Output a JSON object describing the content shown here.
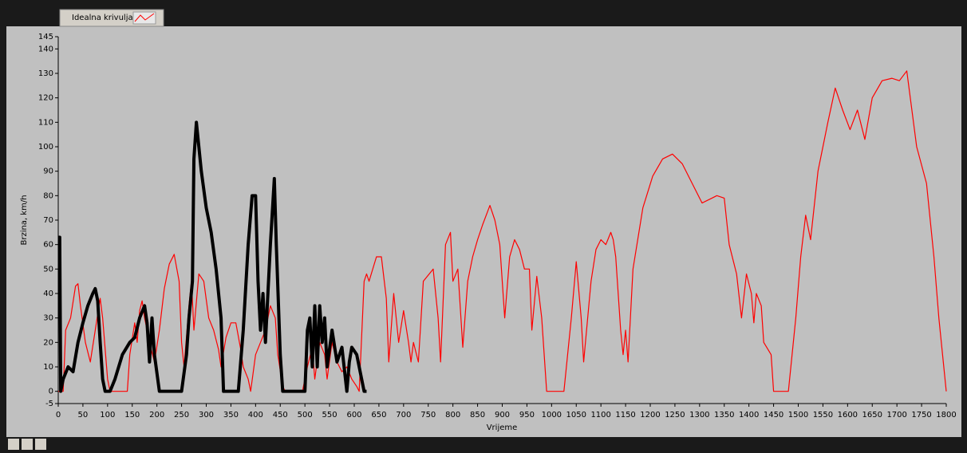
{
  "chart_data": {
    "type": "line",
    "xlabel": "Vrijeme",
    "ylabel": "Brzina, km/h",
    "xlim": [
      0,
      1800
    ],
    "ylim": [
      -5,
      145
    ],
    "xticks": [
      0,
      50,
      100,
      150,
      200,
      250,
      300,
      350,
      400,
      450,
      500,
      550,
      600,
      650,
      700,
      750,
      800,
      850,
      900,
      950,
      1000,
      1050,
      1100,
      1150,
      1200,
      1250,
      1300,
      1350,
      1400,
      1450,
      1500,
      1550,
      1600,
      1650,
      1700,
      1750,
      1800
    ],
    "yticks": [
      -5,
      0,
      10,
      20,
      30,
      40,
      50,
      60,
      70,
      80,
      90,
      100,
      110,
      120,
      130,
      140,
      145
    ],
    "grid": false,
    "series": [
      {
        "name": "Idealna krivulja",
        "color": "#ff0000",
        "x": [
          0,
          10,
          15,
          25,
          35,
          40,
          45,
          55,
          65,
          75,
          85,
          90,
          100,
          105,
          140,
          145,
          155,
          160,
          165,
          170,
          175,
          185,
          195,
          205,
          215,
          225,
          235,
          245,
          250,
          255,
          265,
          270,
          275,
          285,
          295,
          305,
          315,
          325,
          330,
          340,
          350,
          360,
          370,
          375,
          385,
          390,
          400,
          410,
          420,
          430,
          440,
          445,
          455,
          460,
          495,
          505,
          515,
          520,
          530,
          540,
          545,
          555,
          565,
          575,
          585,
          595,
          605,
          610,
          620,
          625,
          630,
          645,
          655,
          665,
          670,
          680,
          690,
          700,
          710,
          715,
          720,
          730,
          740,
          760,
          770,
          775,
          785,
          795,
          800,
          810,
          820,
          830,
          840,
          850,
          860,
          875,
          885,
          895,
          905,
          915,
          925,
          935,
          945,
          955,
          960,
          970,
          980,
          990,
          1025,
          1040,
          1050,
          1060,
          1065,
          1080,
          1090,
          1100,
          1110,
          1120,
          1125,
          1130,
          1140,
          1145,
          1150,
          1155,
          1165,
          1185,
          1205,
          1225,
          1245,
          1265,
          1285,
          1305,
          1325,
          1335,
          1350,
          1360,
          1375,
          1385,
          1395,
          1405,
          1410,
          1415,
          1425,
          1430,
          1445,
          1450,
          1480,
          1495,
          1505,
          1515,
          1525,
          1540,
          1560,
          1575,
          1590,
          1605,
          1620,
          1635,
          1650,
          1670,
          1690,
          1705,
          1720,
          1740,
          1760,
          1775,
          1785,
          1800
        ],
        "values": [
          0,
          0,
          25,
          30,
          43,
          44,
          35,
          20,
          12,
          25,
          38,
          30,
          5,
          0,
          0,
          15,
          28,
          20,
          33,
          37,
          30,
          20,
          12,
          25,
          42,
          52,
          56,
          45,
          20,
          10,
          35,
          45,
          25,
          48,
          45,
          30,
          25,
          17,
          10,
          22,
          28,
          28,
          17,
          10,
          5,
          0,
          15,
          20,
          25,
          35,
          30,
          15,
          2,
          0,
          0,
          10,
          18,
          5,
          20,
          15,
          5,
          20,
          12,
          8,
          10,
          5,
          2,
          0,
          45,
          48,
          45,
          55,
          55,
          38,
          12,
          40,
          20,
          33,
          20,
          12,
          20,
          12,
          45,
          50,
          30,
          12,
          60,
          65,
          45,
          50,
          18,
          45,
          55,
          62,
          68,
          76,
          70,
          60,
          30,
          55,
          62,
          58,
          50,
          50,
          25,
          47,
          30,
          0,
          0,
          30,
          53,
          30,
          12,
          45,
          58,
          62,
          60,
          65,
          62,
          55,
          25,
          15,
          25,
          12,
          50,
          75,
          88,
          95,
          97,
          93,
          85,
          77,
          79,
          80,
          79,
          60,
          48,
          30,
          48,
          40,
          28,
          40,
          35,
          20,
          15,
          0,
          0,
          30,
          55,
          72,
          62,
          90,
          110,
          124,
          115,
          107,
          115,
          103,
          120,
          127,
          128,
          127,
          131,
          100,
          85,
          55,
          30,
          0
        ]
      },
      {
        "color": "#000000",
        "x": [
          0,
          3,
          5,
          10,
          20,
          30,
          40,
          50,
          60,
          70,
          75,
          80,
          85,
          90,
          95,
          105,
          115,
          130,
          145,
          155,
          165,
          175,
          180,
          185,
          190,
          195,
          205,
          250,
          260,
          265,
          272,
          275,
          280,
          290,
          300,
          310,
          320,
          330,
          335,
          365,
          375,
          385,
          393,
          400,
          405,
          410,
          415,
          420,
          430,
          438,
          442,
          450,
          455,
          500,
          505,
          510,
          515,
          520,
          525,
          530,
          535,
          540,
          545,
          555,
          565,
          575,
          585,
          590,
          595,
          605,
          615,
          620,
          625
        ],
        "values": [
          63,
          63,
          0,
          5,
          10,
          8,
          20,
          28,
          35,
          40,
          42,
          37,
          20,
          5,
          0,
          0,
          5,
          15,
          20,
          22,
          30,
          35,
          28,
          12,
          30,
          15,
          0,
          0,
          15,
          30,
          45,
          95,
          110,
          90,
          75,
          65,
          50,
          30,
          0,
          0,
          25,
          60,
          80,
          80,
          45,
          25,
          40,
          20,
          60,
          87,
          60,
          15,
          0,
          0,
          25,
          30,
          10,
          35,
          10,
          35,
          20,
          30,
          10,
          25,
          12,
          18,
          0,
          12,
          18,
          15,
          5,
          0,
          0
        ]
      }
    ]
  }
}
